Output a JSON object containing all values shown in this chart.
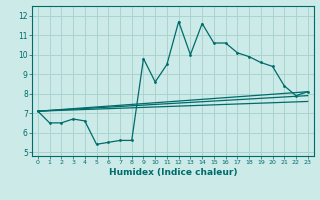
{
  "title": "",
  "xlabel": "Humidex (Indice chaleur)",
  "ylabel": "",
  "bg_color": "#cceae7",
  "grid_color": "#aad4d0",
  "line_color": "#006b6b",
  "xlim": [
    -0.5,
    23.5
  ],
  "ylim": [
    4.8,
    12.5
  ],
  "xticks": [
    0,
    1,
    2,
    3,
    4,
    5,
    6,
    7,
    8,
    9,
    10,
    11,
    12,
    13,
    14,
    15,
    16,
    17,
    18,
    19,
    20,
    21,
    22,
    23
  ],
  "yticks": [
    5,
    6,
    7,
    8,
    9,
    10,
    11,
    12
  ],
  "line1_x": [
    0,
    1,
    2,
    3,
    4,
    5,
    6,
    7,
    8,
    9,
    10,
    11,
    12,
    13,
    14,
    15,
    16,
    17,
    18,
    19,
    20,
    21,
    22,
    23
  ],
  "line1_y": [
    7.1,
    6.5,
    6.5,
    6.7,
    6.6,
    5.4,
    5.5,
    5.6,
    5.6,
    9.8,
    8.6,
    9.5,
    11.7,
    10.0,
    11.6,
    10.6,
    10.6,
    10.1,
    9.9,
    9.6,
    9.4,
    8.4,
    7.9,
    8.1
  ],
  "line2_x": [
    0,
    23
  ],
  "line2_y": [
    7.1,
    8.1
  ],
  "line3_x": [
    0,
    23
  ],
  "line3_y": [
    7.1,
    7.9
  ],
  "line4_x": [
    0,
    23
  ],
  "line4_y": [
    7.1,
    7.6
  ]
}
